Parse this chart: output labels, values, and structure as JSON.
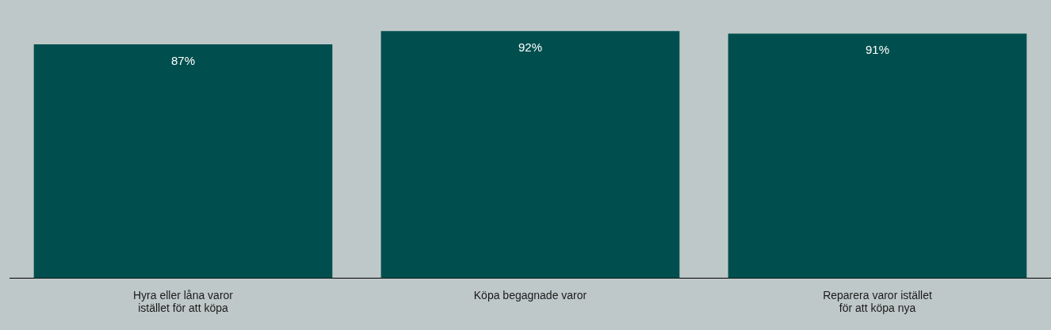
{
  "chart_data": {
    "type": "bar",
    "categories": [
      "Hyra eller låna varor istället för att köpa",
      "Köpa begagnade varor",
      "Reparera varor istället för att köpa nya"
    ],
    "values": [
      87,
      92,
      91
    ],
    "value_labels": [
      "87%",
      "92%",
      "91%"
    ],
    "color": "#004f4e",
    "tick_labels": "x",
    "grid": false,
    "legend": false
  }
}
